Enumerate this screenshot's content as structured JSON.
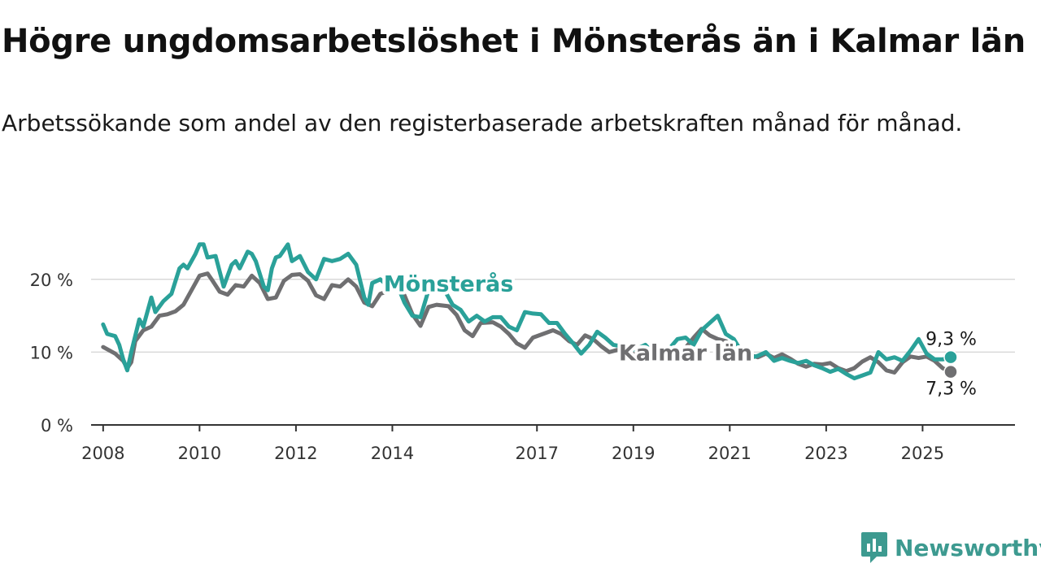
{
  "title": "Högre ungdomsarbetslöshet i Mönsterås än i Kalmar län",
  "subtitle": "Arbetssökande som andel av den registerbaserade arbetskraften månad för månad.",
  "brand": {
    "name": "Newsworthy",
    "color": "#3d9a90",
    "icon": "newsworthy-logo-icon"
  },
  "chart_data": {
    "type": "line",
    "x_type": "date",
    "xlim": [
      "2007-10",
      "2026-12"
    ],
    "ylim": [
      0,
      26
    ],
    "y_ticks": [
      0,
      10,
      20
    ],
    "y_tick_labels": [
      "0 %",
      "10 %",
      "20 %"
    ],
    "x_ticks": [
      "2008-01",
      "2010-01",
      "2012-01",
      "2014-01",
      "2017-01",
      "2019-01",
      "2021-01",
      "2023-01",
      "2025-01"
    ],
    "x_tick_labels": [
      "2008",
      "2010",
      "2012",
      "2014",
      "2017",
      "2019",
      "2021",
      "2023",
      "2025"
    ],
    "grid": true,
    "series": [
      {
        "name": "Kalmar län",
        "color": "#6f6f71",
        "end_label": "7,3 %",
        "points": [
          [
            "2008-01",
            10.7
          ],
          [
            "2008-04",
            9.8
          ],
          [
            "2008-06",
            8.8
          ],
          [
            "2008-07",
            7.8
          ],
          [
            "2008-08",
            8.6
          ],
          [
            "2008-09",
            11.5
          ],
          [
            "2008-11",
            13.0
          ],
          [
            "2009-01",
            13.5
          ],
          [
            "2009-03",
            15.0
          ],
          [
            "2009-05",
            15.2
          ],
          [
            "2009-07",
            15.6
          ],
          [
            "2009-09",
            16.5
          ],
          [
            "2009-11",
            18.5
          ],
          [
            "2010-01",
            20.5
          ],
          [
            "2010-03",
            20.8
          ],
          [
            "2010-04",
            20.0
          ],
          [
            "2010-06",
            18.3
          ],
          [
            "2010-08",
            17.9
          ],
          [
            "2010-10",
            19.2
          ],
          [
            "2010-12",
            19.0
          ],
          [
            "2011-02",
            20.5
          ],
          [
            "2011-04",
            19.5
          ],
          [
            "2011-06",
            17.3
          ],
          [
            "2011-08",
            17.5
          ],
          [
            "2011-10",
            19.8
          ],
          [
            "2011-12",
            20.6
          ],
          [
            "2012-02",
            20.7
          ],
          [
            "2012-04",
            19.8
          ],
          [
            "2012-06",
            17.8
          ],
          [
            "2012-08",
            17.3
          ],
          [
            "2012-10",
            19.2
          ],
          [
            "2012-12",
            19.0
          ],
          [
            "2013-02",
            20.0
          ],
          [
            "2013-04",
            19.0
          ],
          [
            "2013-06",
            16.8
          ],
          [
            "2013-08",
            16.3
          ],
          [
            "2013-10",
            18.0
          ],
          [
            "2013-12",
            18.4
          ],
          [
            "2014-02",
            19.0
          ],
          [
            "2014-04",
            17.8
          ],
          [
            "2014-06",
            15.2
          ],
          [
            "2014-08",
            13.6
          ],
          [
            "2014-10",
            16.2
          ],
          [
            "2014-12",
            16.5
          ],
          [
            "2015-03",
            16.3
          ],
          [
            "2015-05",
            15.1
          ],
          [
            "2015-07",
            13.0
          ],
          [
            "2015-09",
            12.2
          ],
          [
            "2015-11",
            14.0
          ],
          [
            "2016-02",
            14.1
          ],
          [
            "2016-04",
            13.5
          ],
          [
            "2016-06",
            12.5
          ],
          [
            "2016-08",
            11.2
          ],
          [
            "2016-10",
            10.6
          ],
          [
            "2016-12",
            12.0
          ],
          [
            "2017-03",
            12.6
          ],
          [
            "2017-05",
            13.0
          ],
          [
            "2017-07",
            12.5
          ],
          [
            "2017-09",
            11.5
          ],
          [
            "2017-11",
            11.0
          ],
          [
            "2018-01",
            12.3
          ],
          [
            "2018-03",
            11.8
          ],
          [
            "2018-05",
            10.8
          ],
          [
            "2018-07",
            10.0
          ],
          [
            "2018-09",
            10.3
          ],
          [
            "2018-12",
            9.8
          ],
          [
            "2019-03",
            9.6
          ],
          [
            "2019-05",
            9.2
          ],
          [
            "2019-07",
            9.3
          ],
          [
            "2019-09",
            9.6
          ],
          [
            "2019-11",
            10.0
          ],
          [
            "2020-02",
            10.6
          ],
          [
            "2020-04",
            12.0
          ],
          [
            "2020-06",
            13.2
          ],
          [
            "2020-08",
            12.3
          ],
          [
            "2020-10",
            11.8
          ],
          [
            "2020-12",
            11.5
          ],
          [
            "2021-02",
            10.8
          ],
          [
            "2021-04",
            10.0
          ],
          [
            "2021-06",
            9.6
          ],
          [
            "2021-08",
            9.3
          ],
          [
            "2021-10",
            9.8
          ],
          [
            "2021-12",
            9.2
          ],
          [
            "2022-02",
            9.7
          ],
          [
            "2022-04",
            9.1
          ],
          [
            "2022-06",
            8.4
          ],
          [
            "2022-08",
            8.0
          ],
          [
            "2022-10",
            8.4
          ],
          [
            "2022-12",
            8.3
          ],
          [
            "2023-02",
            8.5
          ],
          [
            "2023-04",
            7.8
          ],
          [
            "2023-06",
            7.4
          ],
          [
            "2023-08",
            7.8
          ],
          [
            "2023-10",
            8.7
          ],
          [
            "2023-12",
            9.3
          ],
          [
            "2024-02",
            8.6
          ],
          [
            "2024-04",
            7.5
          ],
          [
            "2024-06",
            7.2
          ],
          [
            "2024-08",
            8.6
          ],
          [
            "2024-10",
            9.4
          ],
          [
            "2024-12",
            9.2
          ],
          [
            "2025-02",
            9.4
          ],
          [
            "2025-04",
            8.8
          ],
          [
            "2025-06",
            7.8
          ],
          [
            "2025-08",
            7.3
          ]
        ]
      },
      {
        "name": "Mönsterås",
        "color": "#2aa199",
        "end_label": "9,3 %",
        "points": [
          [
            "2008-01",
            13.8
          ],
          [
            "2008-02",
            12.5
          ],
          [
            "2008-04",
            12.2
          ],
          [
            "2008-05",
            11.0
          ],
          [
            "2008-06",
            9.0
          ],
          [
            "2008-07",
            7.5
          ],
          [
            "2008-08",
            10.0
          ],
          [
            "2008-10",
            14.5
          ],
          [
            "2008-11",
            13.5
          ],
          [
            "2009-01",
            17.5
          ],
          [
            "2009-02",
            15.5
          ],
          [
            "2009-04",
            17.0
          ],
          [
            "2009-06",
            18.0
          ],
          [
            "2009-08",
            21.5
          ],
          [
            "2009-09",
            22.0
          ],
          [
            "2009-10",
            21.5
          ],
          [
            "2009-12",
            23.5
          ],
          [
            "2010-01",
            24.8
          ],
          [
            "2010-02",
            24.8
          ],
          [
            "2010-03",
            23.0
          ],
          [
            "2010-05",
            23.2
          ],
          [
            "2010-07",
            19.0
          ],
          [
            "2010-09",
            22.0
          ],
          [
            "2010-10",
            22.5
          ],
          [
            "2010-11",
            21.5
          ],
          [
            "2011-01",
            23.8
          ],
          [
            "2011-02",
            23.5
          ],
          [
            "2011-03",
            22.5
          ],
          [
            "2011-05",
            19.0
          ],
          [
            "2011-06",
            18.5
          ],
          [
            "2011-07",
            21.5
          ],
          [
            "2011-08",
            23.0
          ],
          [
            "2011-09",
            23.2
          ],
          [
            "2011-11",
            24.8
          ],
          [
            "2011-12",
            22.5
          ],
          [
            "2012-02",
            23.2
          ],
          [
            "2012-04",
            21.0
          ],
          [
            "2012-06",
            20.0
          ],
          [
            "2012-08",
            22.8
          ],
          [
            "2012-10",
            22.5
          ],
          [
            "2012-12",
            22.8
          ],
          [
            "2013-02",
            23.5
          ],
          [
            "2013-04",
            22.0
          ],
          [
            "2013-06",
            17.5
          ],
          [
            "2013-07",
            16.5
          ],
          [
            "2013-08",
            19.5
          ],
          [
            "2013-10",
            20.0
          ],
          [
            "2013-12",
            19.0
          ],
          [
            "2014-02",
            19.5
          ],
          [
            "2014-04",
            16.8
          ],
          [
            "2014-06",
            15.0
          ],
          [
            "2014-08",
            14.8
          ],
          [
            "2014-10",
            18.5
          ],
          [
            "2014-12",
            18.8
          ],
          [
            "2015-02",
            18.5
          ],
          [
            "2015-04",
            16.5
          ],
          [
            "2015-06",
            15.8
          ],
          [
            "2015-08",
            14.2
          ],
          [
            "2015-10",
            15.0
          ],
          [
            "2015-12",
            14.2
          ],
          [
            "2016-02",
            14.8
          ],
          [
            "2016-04",
            14.8
          ],
          [
            "2016-06",
            13.5
          ],
          [
            "2016-08",
            13.0
          ],
          [
            "2016-10",
            15.5
          ],
          [
            "2016-12",
            15.3
          ],
          [
            "2017-02",
            15.2
          ],
          [
            "2017-04",
            14.0
          ],
          [
            "2017-06",
            14.0
          ],
          [
            "2017-08",
            12.5
          ],
          [
            "2017-10",
            11.2
          ],
          [
            "2017-12",
            9.8
          ],
          [
            "2018-02",
            11.0
          ],
          [
            "2018-04",
            12.8
          ],
          [
            "2018-06",
            12.0
          ],
          [
            "2018-08",
            11.0
          ],
          [
            "2018-10",
            10.8
          ],
          [
            "2018-12",
            10.2
          ],
          [
            "2019-02",
            10.5
          ],
          [
            "2019-04",
            11.0
          ],
          [
            "2019-06",
            9.8
          ],
          [
            "2019-08",
            10.5
          ],
          [
            "2019-10",
            10.5
          ],
          [
            "2019-12",
            11.8
          ],
          [
            "2020-02",
            12.0
          ],
          [
            "2020-04",
            11.0
          ],
          [
            "2020-06",
            13.0
          ],
          [
            "2020-08",
            14.0
          ],
          [
            "2020-10",
            15.0
          ],
          [
            "2020-12",
            12.5
          ],
          [
            "2021-02",
            11.8
          ],
          [
            "2021-04",
            10.0
          ],
          [
            "2021-06",
            9.2
          ],
          [
            "2021-08",
            9.5
          ],
          [
            "2021-10",
            10.0
          ],
          [
            "2021-12",
            8.8
          ],
          [
            "2022-02",
            9.2
          ],
          [
            "2022-04",
            8.8
          ],
          [
            "2022-06",
            8.5
          ],
          [
            "2022-08",
            8.8
          ],
          [
            "2022-10",
            8.2
          ],
          [
            "2022-12",
            7.8
          ],
          [
            "2023-02",
            7.3
          ],
          [
            "2023-04",
            7.7
          ],
          [
            "2023-06",
            7.0
          ],
          [
            "2023-08",
            6.4
          ],
          [
            "2023-10",
            6.8
          ],
          [
            "2023-12",
            7.2
          ],
          [
            "2024-02",
            10.0
          ],
          [
            "2024-04",
            9.0
          ],
          [
            "2024-06",
            9.3
          ],
          [
            "2024-08",
            8.8
          ],
          [
            "2024-10",
            10.2
          ],
          [
            "2024-12",
            11.8
          ],
          [
            "2025-02",
            9.8
          ],
          [
            "2025-04",
            9.0
          ],
          [
            "2025-06",
            9.0
          ],
          [
            "2025-08",
            9.3
          ]
        ]
      }
    ]
  }
}
